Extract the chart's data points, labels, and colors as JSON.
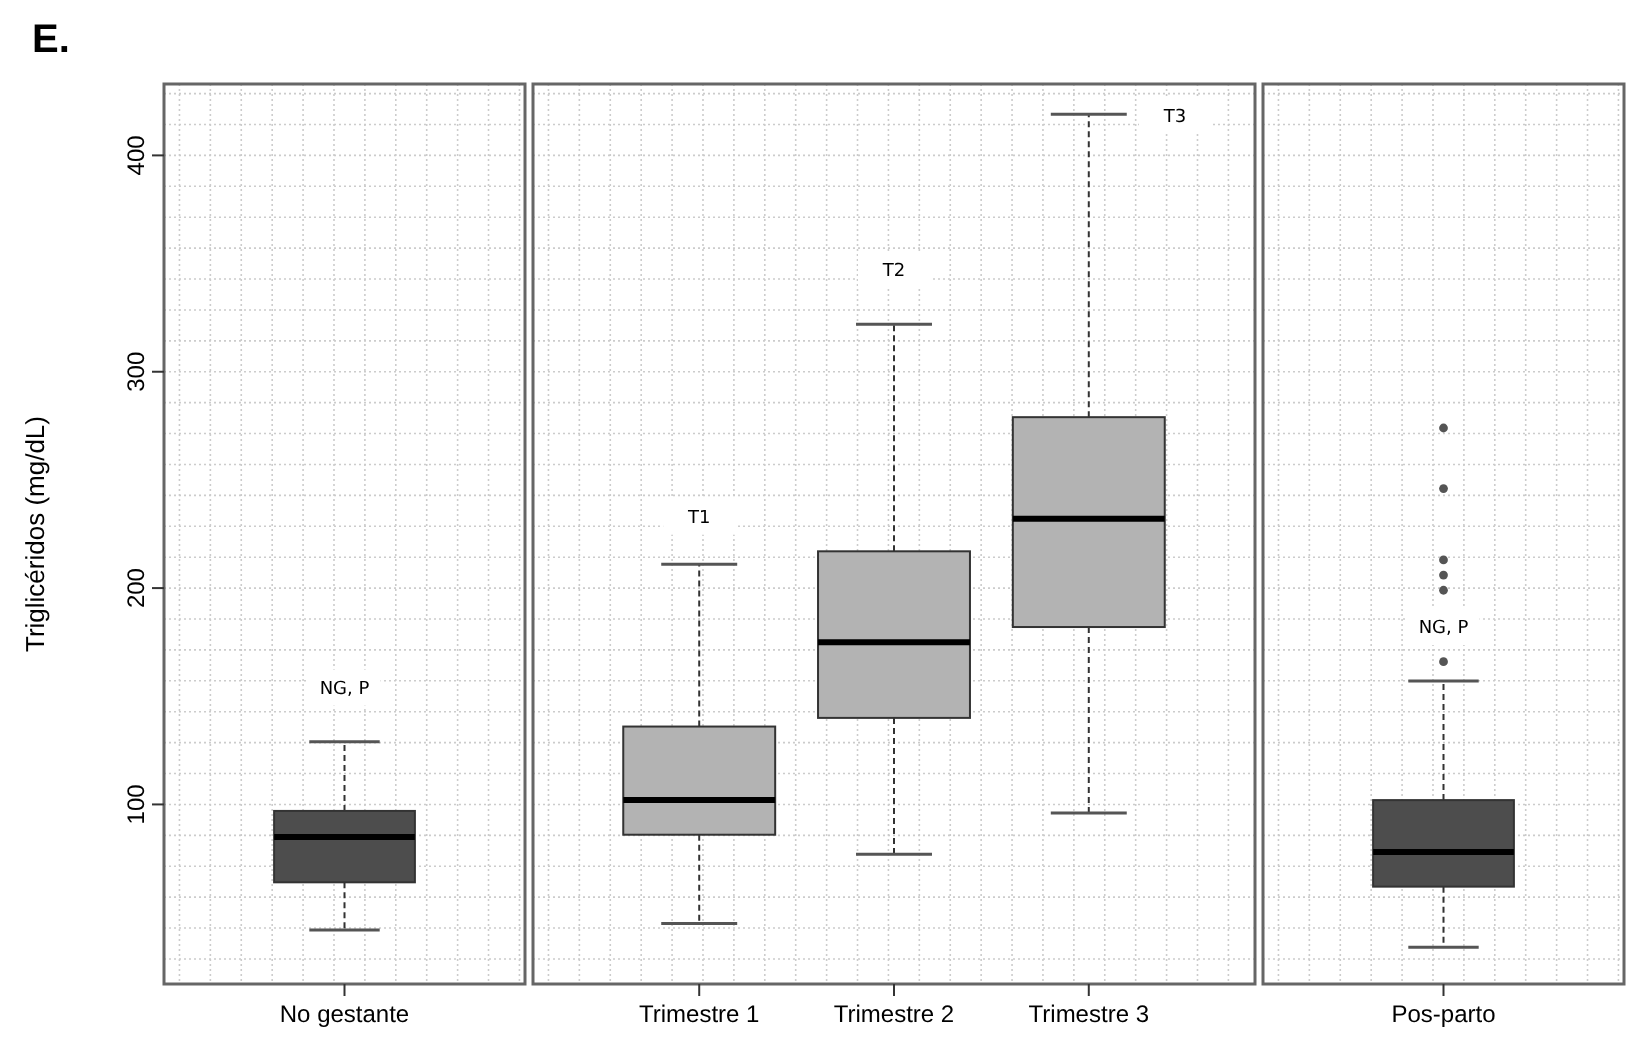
{
  "chart_data": [
    {
      "type": "box",
      "title": "E.",
      "ylabel": "Triglicéridos (mg/dL)",
      "categories": [
        "No gestante"
      ],
      "colors": [
        "#4d4d4d"
      ],
      "boxes": [
        {
          "low": 42,
          "q1": 64,
          "median": 85,
          "q3": 97,
          "high": 129
        }
      ],
      "ylim": [
        17,
        433
      ],
      "yticks": [
        100,
        200,
        300,
        400
      ],
      "grid": true,
      "annotations": [
        {
          "text": "NG, P",
          "x": "No gestante",
          "y": 154
        }
      ]
    },
    {
      "type": "box",
      "categories": [
        "Trimestre 1",
        "Trimestre 2",
        "Trimestre 3"
      ],
      "colors": [
        "#b3b3b3",
        "#b3b3b3",
        "#b3b3b3"
      ],
      "boxes": [
        {
          "low": 45,
          "q1": 86,
          "median": 102,
          "q3": 136,
          "high": 211
        },
        {
          "low": 77,
          "q1": 140,
          "median": 175,
          "q3": 217,
          "high": 322
        },
        {
          "low": 96,
          "q1": 182,
          "median": 232,
          "q3": 279,
          "high": 419
        }
      ],
      "ylim": [
        17,
        433
      ],
      "yticks": [
        100,
        200,
        300,
        400
      ],
      "grid": true,
      "tick_labels": "x",
      "annotations": [
        {
          "text": "T1",
          "x": "Trimestre 1",
          "y": 233
        },
        {
          "text": "T2",
          "x": "Trimestre 2",
          "y": 347
        },
        "T3"
      ]
    },
    {
      "type": "box",
      "categories": [
        "Pos-parto"
      ],
      "colors": [
        "#4d4d4d"
      ],
      "boxes": [
        {
          "low": 34,
          "q1": 62,
          "median": 78,
          "q3": 102,
          "high": 157,
          "outliers": [
            166,
            199,
            206,
            213,
            246,
            274
          ]
        }
      ],
      "ylim": [
        17,
        433
      ],
      "yticks": [
        100,
        200,
        300,
        400
      ],
      "grid": true,
      "tick_labels": "x",
      "annotations": [
        {
          "text": "NG, P",
          "x": "Pos-parto",
          "y": 182
        }
      ]
    }
  ]
}
